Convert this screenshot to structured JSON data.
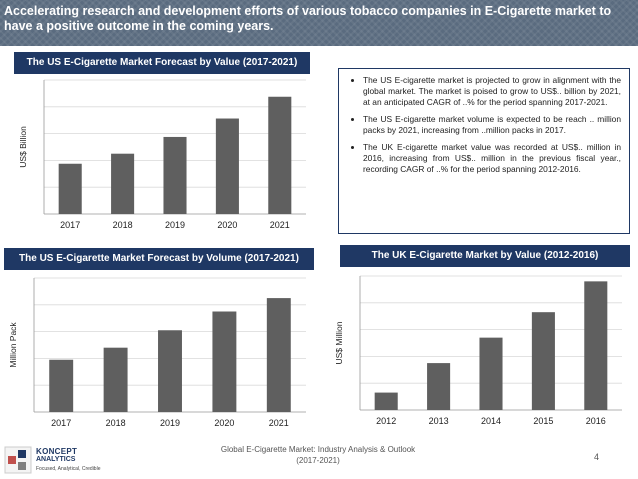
{
  "header": {
    "title": "Accelerating research and development efforts of various tobacco companies in E-Cigarette market to have a positive outcome in the coming years."
  },
  "panels": {
    "us_value_title": "The US E-Cigarette Market Forecast by Value (2017-2021)",
    "us_volume_title": "The US E-Cigarette Market Forecast by Volume (2017-2021)",
    "uk_value_title": "The UK E-Cigarette Market by Value (2012-2016)"
  },
  "bullets": [
    "The US E-cigarette market is projected to grow in alignment with the global market. The market is poised to grow to US$.. billion by 2021, at an anticipated CAGR of ..% for the period spanning 2017-2021.",
    "The US E-cigarette market volume is expected to be reach .. million packs by 2021, increasing from ..million packs in 2017.",
    "The UK E-cigarette market value was recorded at US$.. million in 2016, increasing from US$.. million in the previous fiscal year., recording CAGR of ..% for the period spanning 2012-2016."
  ],
  "footer": {
    "line1": "Global E-Cigarette Market: Industry Analysis & Outlook",
    "line2": "(2017-2021)",
    "page": "4"
  },
  "logo": {
    "name": "KONCEPT",
    "name2": "ANALYTICS",
    "tagline": "Focused, Analytical, Credible"
  },
  "colors": {
    "banner": "#5a6b7f",
    "title_bar": "#1f3864",
    "bar": "#5f5f5f"
  },
  "chart_data": [
    {
      "id": "us_value",
      "type": "bar",
      "title": "The US E-Cigarette Market Forecast by Value (2017-2021)",
      "xlabel": "",
      "ylabel": "US$ Billion",
      "categories": [
        "2017",
        "2018",
        "2019",
        "2020",
        "2021"
      ],
      "values": [
        3.0,
        3.6,
        4.6,
        5.7,
        7.0
      ],
      "ylim": [
        0,
        8
      ]
    },
    {
      "id": "us_volume",
      "type": "bar",
      "title": "The US E-Cigarette Market Forecast by Volume (2017-2021)",
      "xlabel": "",
      "ylabel": "Million Pack",
      "categories": [
        "2017",
        "2018",
        "2019",
        "2020",
        "2021"
      ],
      "values": [
        3.9,
        4.8,
        6.1,
        7.5,
        8.5
      ],
      "ylim": [
        0,
        10
      ]
    },
    {
      "id": "uk_value",
      "type": "bar",
      "title": "The UK E-Cigarette Market by Value (2012-2016)",
      "xlabel": "",
      "ylabel": "US$ Million",
      "categories": [
        "2012",
        "2013",
        "2014",
        "2015",
        "2016"
      ],
      "values": [
        1.3,
        3.5,
        5.4,
        7.3,
        9.6
      ],
      "ylim": [
        0,
        10
      ]
    }
  ]
}
